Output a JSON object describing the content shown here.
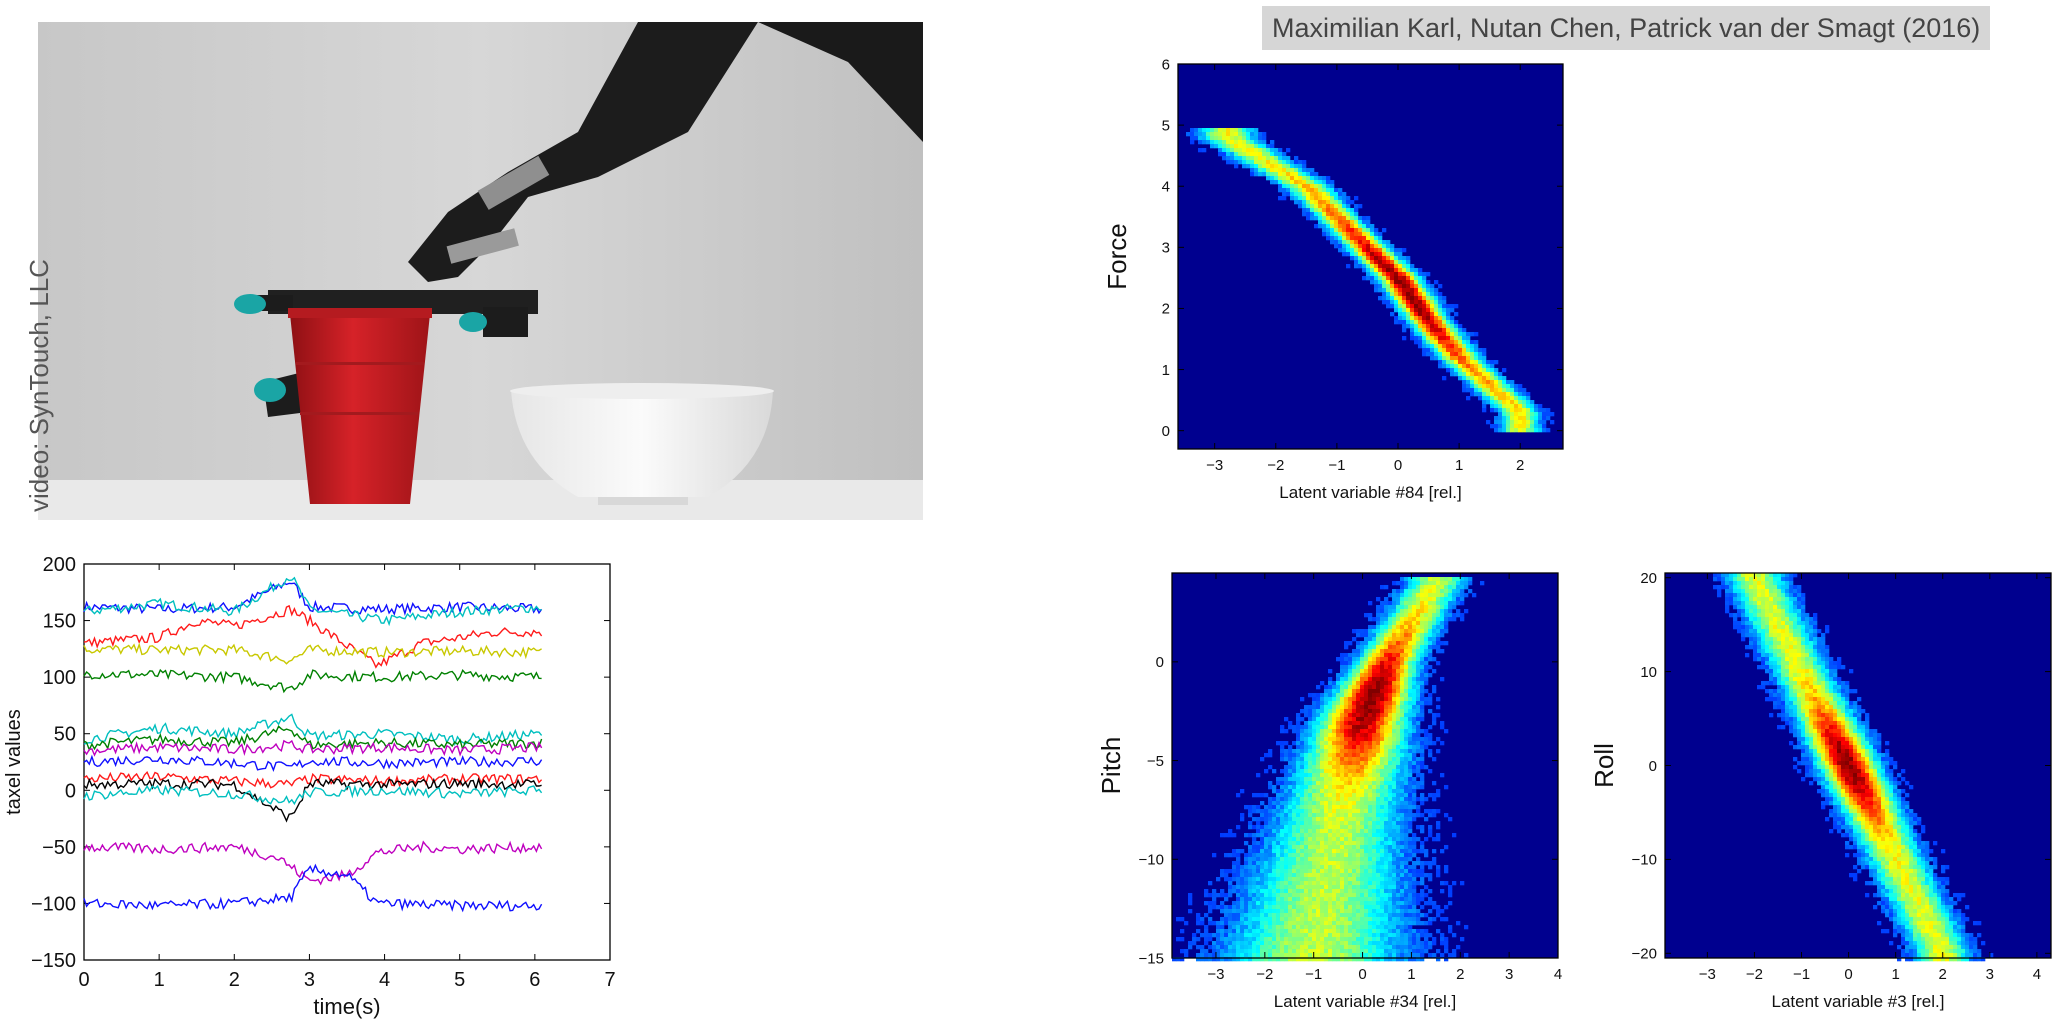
{
  "credit": "video: SynTouch, LLC",
  "authors": "Maximilian Karl, Nutan Chen, Patrick van der Smagt (2016)",
  "photo": {
    "icon": "robot-arm-cup-bowl-photo",
    "colors": {
      "cup": "#cc1f24",
      "bowl": "#f2f2f2",
      "arm": "#1c1c1c",
      "wall": "#cfcfcf"
    }
  },
  "chart_data": [
    {
      "type": "line",
      "title": "",
      "xlabel": "time(s)",
      "ylabel": "taxel values",
      "xlim": [
        0,
        7
      ],
      "ylim": [
        -150,
        200
      ],
      "xticks": [
        "0",
        "1",
        "2",
        "3",
        "4",
        "5",
        "6",
        "7"
      ],
      "yticks": [
        "-150",
        "-100",
        "-50",
        "0",
        "50",
        "100",
        "150",
        "200"
      ],
      "grid": false,
      "series": [
        {
          "color": "#1010ff",
          "values": [
            [
              0,
              162
            ],
            [
              1,
              160
            ],
            [
              2,
              162
            ],
            [
              2.75,
              185
            ],
            [
              3,
              162
            ],
            [
              4,
              160
            ],
            [
              5,
              162
            ],
            [
              6.1,
              160
            ]
          ]
        },
        {
          "color": "#00bfbf",
          "values": [
            [
              0,
              158
            ],
            [
              1,
              165
            ],
            [
              2,
              158
            ],
            [
              2.75,
              190
            ],
            [
              3,
              160
            ],
            [
              4,
              150
            ],
            [
              5,
              158
            ],
            [
              6.1,
              162
            ]
          ]
        },
        {
          "color": "#ff1a1a",
          "values": [
            [
              0,
              130
            ],
            [
              1,
              135
            ],
            [
              1.5,
              150
            ],
            [
              2,
              145
            ],
            [
              2.75,
              160
            ],
            [
              3,
              150
            ],
            [
              3.9,
              110
            ],
            [
              4.5,
              130
            ],
            [
              5.5,
              140
            ],
            [
              6.1,
              140
            ]
          ]
        },
        {
          "color": "#c8c800",
          "values": [
            [
              0,
              125
            ],
            [
              1,
              124
            ],
            [
              2,
              124
            ],
            [
              2.75,
              115
            ],
            [
              3,
              124
            ],
            [
              4,
              122
            ],
            [
              5,
              123
            ],
            [
              6.1,
              122
            ]
          ]
        },
        {
          "color": "#008000",
          "values": [
            [
              0,
              103
            ],
            [
              1,
              102
            ],
            [
              2,
              100
            ],
            [
              2.75,
              90
            ],
            [
              3,
              102
            ],
            [
              4,
              100
            ],
            [
              5,
              102
            ],
            [
              6.1,
              100
            ]
          ]
        },
        {
          "color": "#00bfbf",
          "values": [
            [
              0,
              45
            ],
            [
              1,
              55
            ],
            [
              2,
              50
            ],
            [
              2.75,
              65
            ],
            [
              3,
              48
            ],
            [
              4,
              50
            ],
            [
              5,
              45
            ],
            [
              6.1,
              50
            ]
          ]
        },
        {
          "color": "#008000",
          "values": [
            [
              0,
              40
            ],
            [
              1,
              45
            ],
            [
              2,
              42
            ],
            [
              2.75,
              55
            ],
            [
              3,
              40
            ],
            [
              4,
              42
            ],
            [
              5,
              40
            ],
            [
              6.1,
              42
            ]
          ]
        },
        {
          "color": "#bf00bf",
          "values": [
            [
              0,
              35
            ],
            [
              1,
              38
            ],
            [
              2,
              36
            ],
            [
              2.75,
              40
            ],
            [
              3,
              36
            ],
            [
              4,
              38
            ],
            [
              5,
              35
            ],
            [
              6.1,
              38
            ]
          ]
        },
        {
          "color": "#1010ff",
          "values": [
            [
              0,
              25
            ],
            [
              1,
              28
            ],
            [
              2,
              24
            ],
            [
              2.75,
              20
            ],
            [
              3,
              26
            ],
            [
              4,
              24
            ],
            [
              5,
              25
            ],
            [
              6.1,
              26
            ]
          ]
        },
        {
          "color": "#ff1a1a",
          "values": [
            [
              0,
              10
            ],
            [
              1,
              12
            ],
            [
              2,
              8
            ],
            [
              2.75,
              5
            ],
            [
              3,
              10
            ],
            [
              4,
              8
            ],
            [
              5,
              10
            ],
            [
              6.1,
              10
            ]
          ]
        },
        {
          "color": "#000000",
          "values": [
            [
              0,
              5
            ],
            [
              1,
              6
            ],
            [
              2,
              5
            ],
            [
              2.75,
              -25
            ],
            [
              3,
              6
            ],
            [
              4,
              5
            ],
            [
              5,
              6
            ],
            [
              6.1,
              5
            ]
          ]
        },
        {
          "color": "#00bfbf",
          "values": [
            [
              0,
              -5
            ],
            [
              1,
              0
            ],
            [
              2,
              -3
            ],
            [
              2.75,
              -10
            ],
            [
              3,
              -2
            ],
            [
              4,
              0
            ],
            [
              5,
              -3
            ],
            [
              6.1,
              0
            ]
          ]
        },
        {
          "color": "#bf00bf",
          "values": [
            [
              0,
              -50
            ],
            [
              1,
              -52
            ],
            [
              2,
              -50
            ],
            [
              2.6,
              -60
            ],
            [
              3,
              -80
            ],
            [
              3.5,
              -75
            ],
            [
              3.9,
              -55
            ],
            [
              4.5,
              -50
            ],
            [
              5,
              -52
            ],
            [
              6.1,
              -50
            ]
          ]
        },
        {
          "color": "#1010ff",
          "values": [
            [
              0,
              -100
            ],
            [
              1,
              -102
            ],
            [
              2,
              -100
            ],
            [
              2.75,
              -95
            ],
            [
              3,
              -70
            ],
            [
              3.5,
              -75
            ],
            [
              3.9,
              -100
            ],
            [
              5,
              -102
            ],
            [
              6.1,
              -102
            ]
          ]
        }
      ]
    },
    {
      "type": "heatmap",
      "title": "",
      "xlabel": "Latent variable #84 [rel.]",
      "ylabel": "Force",
      "xlim": [
        -3.6,
        2.7
      ],
      "ylim": [
        -0.3,
        6.0
      ],
      "xticks": [
        "-3",
        "-2",
        "-1",
        "0",
        "1",
        "2"
      ],
      "yticks": [
        "0",
        "1",
        "2",
        "3",
        "4",
        "5",
        "6"
      ],
      "colormap": "jet",
      "background": "#00008f",
      "density_ridge": [
        [
          -2.8,
          4.8
        ],
        [
          -1.5,
          4.0
        ],
        [
          -0.5,
          3.0
        ],
        [
          0,
          2.5
        ],
        [
          0.5,
          1.8
        ],
        [
          1,
          1.2
        ],
        [
          2,
          0.3
        ]
      ]
    },
    {
      "type": "heatmap",
      "title": "",
      "xlabel": "Latent variable #34 [rel.]",
      "ylabel": "Pitch",
      "xlim": [
        -3.9,
        4.0
      ],
      "ylim": [
        -15,
        4.5
      ],
      "xticks": [
        "-3",
        "-2",
        "-1",
        "0",
        "1",
        "2",
        "3",
        "4"
      ],
      "yticks": [
        "-15",
        "-10",
        "-5",
        "0"
      ],
      "colormap": "jet",
      "background": "#00008f",
      "density_ridge": [
        [
          1.5,
          4
        ],
        [
          0.5,
          0
        ],
        [
          0,
          -3
        ],
        [
          -0.5,
          -8
        ],
        [
          -1,
          -15
        ]
      ]
    },
    {
      "type": "heatmap",
      "title": "",
      "xlabel": "Latent variable #3 [rel.]",
      "ylabel": "Roll",
      "xlim": [
        -3.9,
        4.3
      ],
      "ylim": [
        -20.5,
        20.5
      ],
      "xticks": [
        "-3",
        "-2",
        "-1",
        "0",
        "1",
        "2",
        "3",
        "4"
      ],
      "yticks": [
        "-20",
        "-10",
        "0",
        "10",
        "20"
      ],
      "colormap": "jet",
      "background": "#00008f",
      "density_ridge": [
        [
          -2,
          20
        ],
        [
          -1,
          10
        ],
        [
          0,
          0
        ],
        [
          1,
          -10
        ],
        [
          2,
          -20
        ]
      ]
    }
  ]
}
